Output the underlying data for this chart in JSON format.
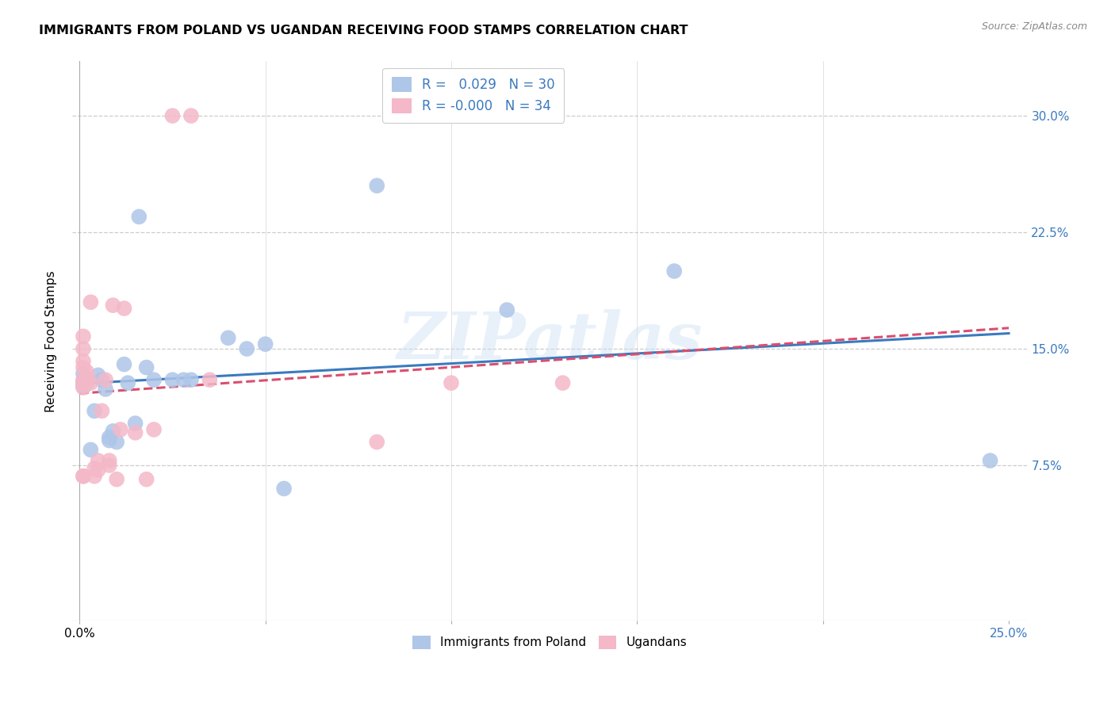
{
  "title": "IMMIGRANTS FROM POLAND VS UGANDAN RECEIVING FOOD STAMPS CORRELATION CHART",
  "source": "Source: ZipAtlas.com",
  "ylabel": "Receiving Food Stamps",
  "xlim": [
    -0.002,
    0.255
  ],
  "ylim": [
    -0.025,
    0.335
  ],
  "xticks": [
    0.0,
    0.05,
    0.1,
    0.15,
    0.2,
    0.25
  ],
  "xticklabels": [
    "0.0%",
    "",
    "",
    "",
    "",
    "25.0%"
  ],
  "yticks": [
    0.075,
    0.15,
    0.225,
    0.3
  ],
  "yticklabels": [
    "7.5%",
    "15.0%",
    "22.5%",
    "30.0%"
  ],
  "legend_label1": "Immigrants from Poland",
  "legend_label2": "Ugandans",
  "R1": "0.029",
  "N1": "30",
  "R2": "-0.000",
  "N2": "34",
  "color1": "#aec6e8",
  "color2": "#f4b8c8",
  "line_color1": "#3a7abf",
  "line_color2": "#d94f6e",
  "watermark": "ZIPatlas",
  "poland_x": [
    0.001,
    0.001,
    0.001,
    0.002,
    0.003,
    0.004,
    0.005,
    0.006,
    0.007,
    0.008,
    0.008,
    0.009,
    0.01,
    0.012,
    0.013,
    0.015,
    0.016,
    0.018,
    0.02,
    0.025,
    0.028,
    0.03,
    0.04,
    0.045,
    0.05,
    0.055,
    0.08,
    0.115,
    0.16,
    0.245
  ],
  "poland_y": [
    0.126,
    0.129,
    0.134,
    0.128,
    0.085,
    0.11,
    0.133,
    0.13,
    0.124,
    0.091,
    0.093,
    0.097,
    0.09,
    0.14,
    0.128,
    0.102,
    0.235,
    0.138,
    0.13,
    0.13,
    0.13,
    0.13,
    0.157,
    0.15,
    0.153,
    0.06,
    0.255,
    0.175,
    0.2,
    0.078
  ],
  "uganda_x": [
    0.001,
    0.001,
    0.001,
    0.001,
    0.001,
    0.001,
    0.001,
    0.001,
    0.001,
    0.002,
    0.002,
    0.003,
    0.003,
    0.004,
    0.004,
    0.005,
    0.005,
    0.006,
    0.007,
    0.008,
    0.008,
    0.009,
    0.01,
    0.011,
    0.012,
    0.015,
    0.018,
    0.02,
    0.025,
    0.03,
    0.035,
    0.08,
    0.1,
    0.13
  ],
  "uganda_y": [
    0.068,
    0.068,
    0.125,
    0.128,
    0.13,
    0.138,
    0.142,
    0.15,
    0.158,
    0.13,
    0.135,
    0.128,
    0.18,
    0.068,
    0.073,
    0.072,
    0.078,
    0.11,
    0.13,
    0.075,
    0.078,
    0.178,
    0.066,
    0.098,
    0.176,
    0.096,
    0.066,
    0.098,
    0.3,
    0.3,
    0.13,
    0.09,
    0.128,
    0.128
  ]
}
